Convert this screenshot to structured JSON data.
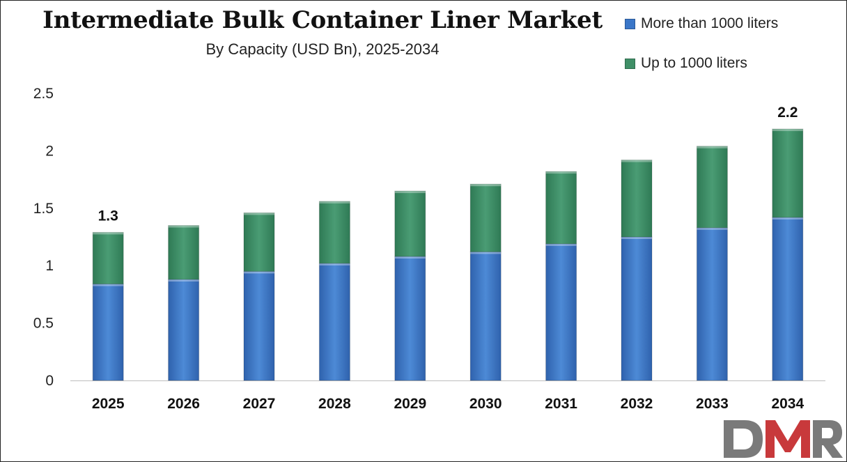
{
  "chart_data": {
    "type": "bar",
    "stacked": true,
    "title": "Intermediate Bulk Container Liner Market",
    "subtitle": "By Capacity (USD Bn), 2025-2034",
    "categories": [
      "2025",
      "2026",
      "2027",
      "2028",
      "2029",
      "2030",
      "2031",
      "2032",
      "2033",
      "2034"
    ],
    "series": [
      {
        "name": "More than 1000 liters",
        "color": "#3a76c8",
        "values": [
          0.84,
          0.88,
          0.95,
          1.02,
          1.08,
          1.12,
          1.19,
          1.25,
          1.33,
          1.42
        ]
      },
      {
        "name": "Up to 1000 liters",
        "color": "#3f8f67",
        "values": [
          0.45,
          0.47,
          0.51,
          0.54,
          0.57,
          0.59,
          0.63,
          0.67,
          0.71,
          0.77
        ]
      }
    ],
    "data_labels": [
      {
        "category": "2025",
        "text": "1.3"
      },
      {
        "category": "2034",
        "text": "2.2"
      }
    ],
    "yticks": [
      "0",
      "0.5",
      "1",
      "1.5",
      "2",
      "2.5"
    ],
    "ylim": [
      0,
      2.5
    ],
    "xlabel": "",
    "ylabel": "",
    "grid": false,
    "legend_position": "top-right"
  },
  "logo": {
    "text": "DMR",
    "colors": {
      "d": "#7a7a7a",
      "m": "#c8393b",
      "r": "#7a7a7a"
    }
  }
}
